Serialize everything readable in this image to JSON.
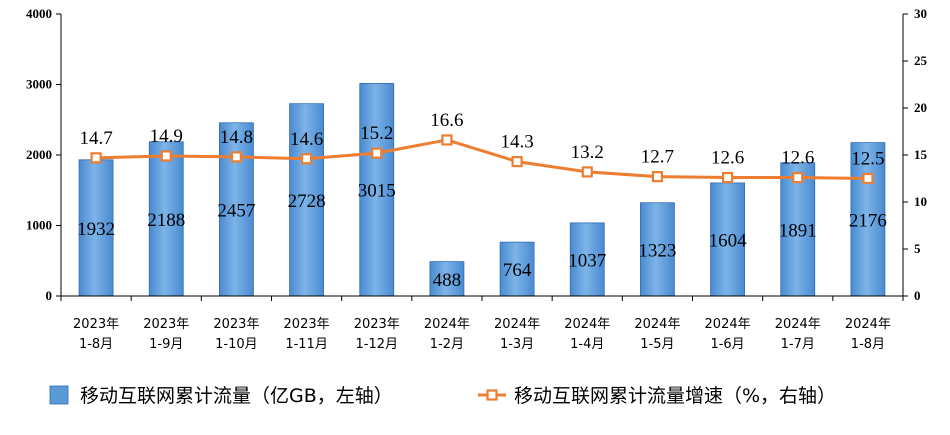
{
  "chart_data": {
    "type": "bar",
    "categories": [
      [
        "2023年",
        "1-8月"
      ],
      [
        "2023年",
        "1-9月"
      ],
      [
        "2023年",
        "1-10月"
      ],
      [
        "2023年",
        "1-11月"
      ],
      [
        "2023年",
        "1-12月"
      ],
      [
        "2024年",
        "1-2月"
      ],
      [
        "2024年",
        "1-3月"
      ],
      [
        "2024年",
        "1-4月"
      ],
      [
        "2024年",
        "1-5月"
      ],
      [
        "2024年",
        "1-6月"
      ],
      [
        "2024年",
        "1-7月"
      ],
      [
        "2024年",
        "1-8月"
      ]
    ],
    "series": [
      {
        "name": "移动互联网累计流量（亿GB，左轴）",
        "type": "bar",
        "axis": "left",
        "color": "#5B9BD5",
        "values": [
          1932,
          2188,
          2457,
          2728,
          3015,
          488,
          764,
          1037,
          1323,
          1604,
          1891,
          2176
        ]
      },
      {
        "name": "移动互联网累计流量增速（%，右轴）",
        "type": "line",
        "axis": "right",
        "color": "#ED7D31",
        "values": [
          14.7,
          14.9,
          14.8,
          14.6,
          15.2,
          16.6,
          14.3,
          13.2,
          12.7,
          12.6,
          12.6,
          12.5
        ]
      }
    ],
    "y_left": {
      "min": 0,
      "max": 4000,
      "ticks": [
        "0",
        "1000",
        "2000",
        "3000",
        "4000"
      ]
    },
    "y_right": {
      "min": 0,
      "max": 30,
      "ticks": [
        "0",
        "5",
        "10",
        "15",
        "20",
        "25",
        "30"
      ]
    },
    "grid": false,
    "legend_position": "bottom"
  }
}
